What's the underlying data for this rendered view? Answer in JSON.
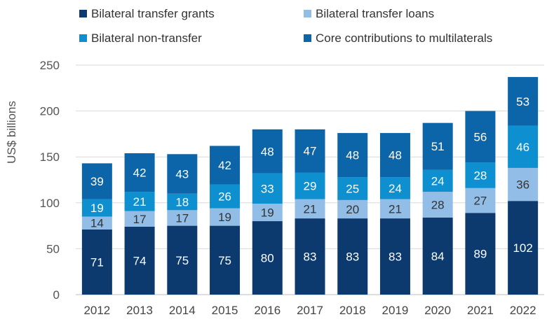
{
  "chart_data": {
    "type": "bar",
    "stacked": true,
    "categories": [
      "2012",
      "2013",
      "2014",
      "2015",
      "2016",
      "2017",
      "2018",
      "2019",
      "2020",
      "2021",
      "2022"
    ],
    "ylabel": "US$ billions",
    "xlabel": "",
    "ylim": [
      0,
      250
    ],
    "yticks": [
      0,
      50,
      100,
      150,
      200,
      250
    ],
    "grid": true,
    "legend_position": "top",
    "series": [
      {
        "name": "Bilateral transfer grants",
        "color": "#0c3a6e",
        "label_color": "#ffffff",
        "values": [
          71,
          74,
          75,
          75,
          80,
          83,
          83,
          83,
          84,
          89,
          102
        ]
      },
      {
        "name": "Bilateral transfer loans",
        "color": "#92bde6",
        "label_color": "#333333",
        "values": [
          14,
          17,
          17,
          19,
          19,
          21,
          20,
          21,
          28,
          27,
          36
        ]
      },
      {
        "name": "Bilateral non-transfer",
        "color": "#0d8fd0",
        "label_color": "#ffffff",
        "values": [
          19,
          21,
          18,
          26,
          33,
          29,
          25,
          24,
          24,
          28,
          46
        ]
      },
      {
        "name": "Core contributions to multilaterals",
        "color": "#0b65a8",
        "label_color": "#ffffff",
        "values": [
          39,
          42,
          43,
          42,
          48,
          47,
          48,
          48,
          51,
          56,
          53
        ]
      }
    ]
  }
}
